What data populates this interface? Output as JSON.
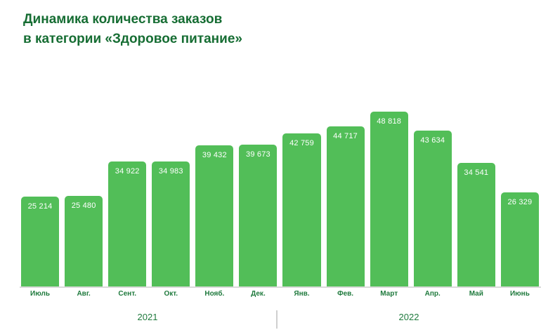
{
  "title": {
    "line1": "Динамика количества заказов",
    "line2": "в категории «Здоровое питание»"
  },
  "colors": {
    "background": "#ffffff",
    "bar": "#52be58",
    "title": "#166d33",
    "axis_label": "#1f7a3d",
    "value_label": "#ffffff",
    "baseline": "#dadada",
    "divider": "#cfcfcf"
  },
  "chart_data": {
    "type": "bar",
    "title": "Динамика количества заказов в категории «Здоровое питание»",
    "categories": [
      "Июль",
      "Авг.",
      "Сент.",
      "Окт.",
      "Нояб.",
      "Дек.",
      "Янв.",
      "Фев.",
      "Март",
      "Апр.",
      "Май",
      "Июнь"
    ],
    "values": [
      25214,
      25480,
      34922,
      34983,
      39432,
      39673,
      42759,
      44717,
      48818,
      43634,
      34541,
      26329
    ],
    "value_labels": [
      "25 214",
      "25 480",
      "34 922",
      "34 983",
      "39 432",
      "39 673",
      "42 759",
      "44 717",
      "48 818",
      "43 634",
      "34 541",
      "26 329"
    ],
    "xlabel": "",
    "ylabel": "",
    "ylim": [
      0,
      48818
    ],
    "grid": false,
    "legend": false,
    "value_labels_position": "inside-top",
    "year_groups": [
      {
        "label": "2021",
        "months": 6
      },
      {
        "label": "2022",
        "months": 6
      }
    ]
  }
}
